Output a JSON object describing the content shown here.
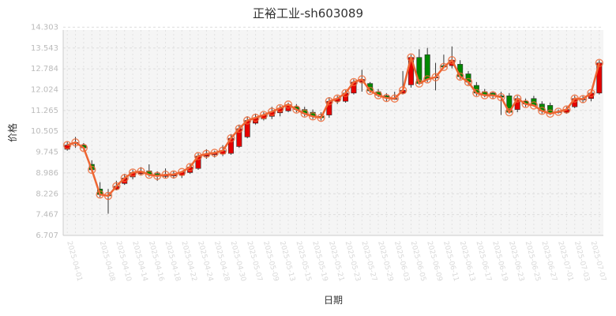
{
  "chart_data": {
    "type": "candlestick",
    "title": "正裕工业-sh603089",
    "xlabel": "日期",
    "ylabel": "价格",
    "ylim": [
      6.707,
      14.2
    ],
    "yticks": [
      "6.707",
      "7.467",
      "8.226",
      "8.986",
      "9.745",
      "10.505",
      "11.265",
      "12.024",
      "12.784",
      "13.543",
      "14.303"
    ],
    "grid": true,
    "up_color": "#e60000",
    "down_color": "#008800",
    "line_color": "#ee6633",
    "dates": [
      "2025-04-01",
      "2025-04-02",
      "2025-04-03",
      "2025-04-07",
      "2025-04-08",
      "2025-04-09",
      "2025-04-10",
      "2025-04-11",
      "2025-04-14",
      "2025-04-15",
      "2025-04-16",
      "2025-04-17",
      "2025-04-18",
      "2025-04-21",
      "2025-04-22",
      "2025-04-23",
      "2025-04-24",
      "2025-04-25",
      "2025-04-28",
      "2025-04-29",
      "2025-04-30",
      "2025-05-06",
      "2025-05-07",
      "2025-05-08",
      "2025-05-09",
      "2025-05-12",
      "2025-05-13",
      "2025-05-14",
      "2025-05-15",
      "2025-05-16",
      "2025-05-19",
      "2025-05-20",
      "2025-05-21",
      "2025-05-22",
      "2025-05-23",
      "2025-05-26",
      "2025-05-27",
      "2025-05-28",
      "2025-05-29",
      "2025-05-30",
      "2025-06-03",
      "2025-06-04",
      "2025-06-05",
      "2025-06-06",
      "2025-06-09",
      "2025-06-10",
      "2025-06-11",
      "2025-06-12",
      "2025-06-13",
      "2025-06-16",
      "2025-06-17",
      "2025-06-18",
      "2025-06-19",
      "2025-06-20",
      "2025-06-23",
      "2025-06-24",
      "2025-06-25",
      "2025-06-26",
      "2025-06-27",
      "2025-06-30",
      "2025-07-01",
      "2025-07-02",
      "2025-07-03",
      "2025-07-04",
      "2025-07-07",
      "2025-07-08"
    ],
    "xtick_labels": [
      "2025-04-01",
      "2025-04-08",
      "2025-04-10",
      "2025-04-14",
      "2025-04-16",
      "2025-04-18",
      "2025-04-22",
      "2025-04-24",
      "2025-04-28",
      "2025-04-30",
      "2025-05-07",
      "2025-05-09",
      "2025-05-13",
      "2025-05-15",
      "2025-05-19",
      "2025-05-21",
      "2025-05-23",
      "2025-05-27",
      "2025-05-29",
      "2025-06-03",
      "2025-06-05",
      "2025-06-09",
      "2025-06-11",
      "2025-06-13",
      "2025-06-17",
      "2025-06-19",
      "2025-06-23",
      "2025-06-25",
      "2025-06-27",
      "2025-07-01",
      "2025-07-03",
      "2025-07-07"
    ],
    "open": [
      9.85,
      10.05,
      10.0,
      9.3,
      8.4,
      8.18,
      8.4,
      8.6,
      8.84,
      8.96,
      9.06,
      8.96,
      8.86,
      8.88,
      8.9,
      9.0,
      9.15,
      9.6,
      9.65,
      9.68,
      9.7,
      9.95,
      10.3,
      10.8,
      10.96,
      11.05,
      11.18,
      11.25,
      11.4,
      11.3,
      11.2,
      11.05,
      11.1,
      11.6,
      11.6,
      11.9,
      12.3,
      12.25,
      11.95,
      11.8,
      11.7,
      11.9,
      12.2,
      13.2,
      13.3,
      12.45,
      12.9,
      12.9,
      12.95,
      12.6,
      12.18,
      11.95,
      11.9,
      11.8,
      11.8,
      11.3,
      11.6,
      11.7,
      11.5,
      11.45,
      11.2,
      11.2,
      11.4,
      11.65,
      11.7,
      11.9
    ],
    "close": [
      10.0,
      10.1,
      9.9,
      9.1,
      8.2,
      8.15,
      8.5,
      8.8,
      9.0,
      9.04,
      8.92,
      8.88,
      8.92,
      8.93,
      9.02,
      9.2,
      9.6,
      9.68,
      9.72,
      9.8,
      10.25,
      10.6,
      10.9,
      11.0,
      11.1,
      11.22,
      11.35,
      11.48,
      11.3,
      11.15,
      11.05,
      11.0,
      11.6,
      11.7,
      11.9,
      12.3,
      12.4,
      11.98,
      11.82,
      11.72,
      11.7,
      12.0,
      13.2,
      12.25,
      12.4,
      12.48,
      12.85,
      13.1,
      12.5,
      12.3,
      11.9,
      11.82,
      11.82,
      11.75,
      11.2,
      11.7,
      11.5,
      11.45,
      11.25,
      11.15,
      11.22,
      11.3,
      11.7,
      11.68,
      11.9,
      13.0
    ],
    "high": [
      10.12,
      10.3,
      10.08,
      9.45,
      8.65,
      8.4,
      8.7,
      8.95,
      9.1,
      9.2,
      9.3,
      9.05,
      9.15,
      9.05,
      9.05,
      9.3,
      9.7,
      9.85,
      9.8,
      10.0,
      10.4,
      10.75,
      11.05,
      11.15,
      11.2,
      11.4,
      11.45,
      11.55,
      11.5,
      11.4,
      11.3,
      11.2,
      11.75,
      11.8,
      12.0,
      12.4,
      12.75,
      12.3,
      12.05,
      11.9,
      11.95,
      12.7,
      13.3,
      13.5,
      13.55,
      13.0,
      13.3,
      13.6,
      13.1,
      12.7,
      12.3,
      12.05,
      11.95,
      11.95,
      11.9,
      11.8,
      11.7,
      11.8,
      11.6,
      11.55,
      11.3,
      11.4,
      11.8,
      11.8,
      12.0,
      13.1
    ],
    "low": [
      9.8,
      9.9,
      9.8,
      9.0,
      8.1,
      7.5,
      8.35,
      8.55,
      8.75,
      8.9,
      8.85,
      8.7,
      8.8,
      8.78,
      8.8,
      8.95,
      9.1,
      9.5,
      9.55,
      9.6,
      9.65,
      9.9,
      10.25,
      10.75,
      10.9,
      10.95,
      11.05,
      11.2,
      11.2,
      11.05,
      10.95,
      10.9,
      11.0,
      11.5,
      11.55,
      11.85,
      11.95,
      11.9,
      11.75,
      11.6,
      11.65,
      11.85,
      12.1,
      12.2,
      12.3,
      12.0,
      12.8,
      12.8,
      12.4,
      12.2,
      11.8,
      11.75,
      11.7,
      11.1,
      11.15,
      11.2,
      11.4,
      11.4,
      11.15,
      11.1,
      11.15,
      11.15,
      11.35,
      11.55,
      11.6,
      11.85
    ]
  }
}
